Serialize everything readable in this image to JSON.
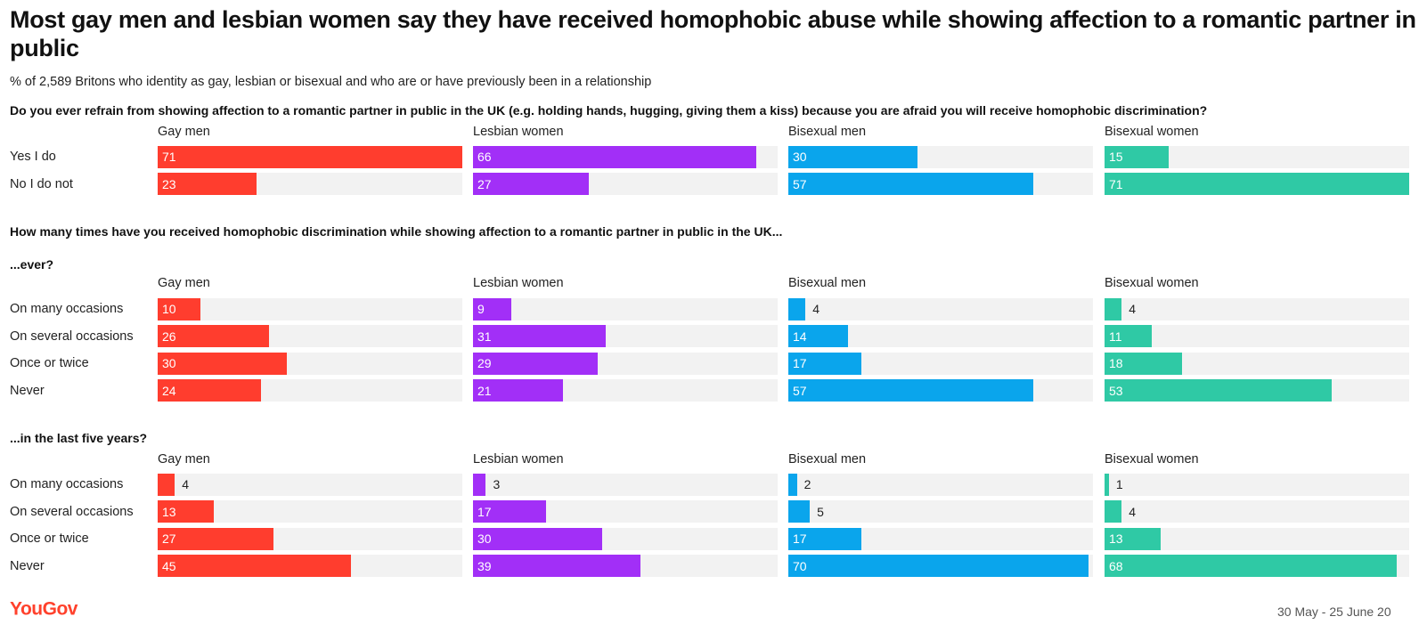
{
  "title": "Most gay men and lesbian women say they have received homophobic abuse while showing affection to a romantic partner in public",
  "subtitle": "% of 2,589 Britons who identity as gay, lesbian or bisexual and who are or have previously been in a relationship",
  "logo": "YouGov",
  "date": "30 May - 25 June 20",
  "chart_data": [
    {
      "type": "bar",
      "title": "Do you ever refrain from showing affection to a romantic partner in public in the UK (e.g. holding hands, hugging, giving them a kiss) because you are afraid you will receive homophobic discrimination?",
      "categories": [
        "Yes I do",
        "No I do not"
      ],
      "xlim": [
        0,
        71
      ],
      "series": [
        {
          "name": "Gay men",
          "color": "#ff3d2e",
          "values": [
            71,
            23
          ]
        },
        {
          "name": "Lesbian women",
          "color": "#a22ff7",
          "values": [
            66,
            27
          ]
        },
        {
          "name": "Bisexual men",
          "color": "#0aa5ec",
          "values": [
            30,
            57
          ]
        },
        {
          "name": "Bisexual women",
          "color": "#2fc9a5",
          "values": [
            15,
            71
          ]
        }
      ]
    },
    {
      "type": "bar",
      "title": "How many times have you received homophobic discrimination while showing affection to a romantic partner in public in the UK...",
      "subtitle": "...ever?",
      "categories": [
        "On many occasions",
        "On several occasions",
        "Once or twice",
        "Never"
      ],
      "xlim": [
        0,
        71
      ],
      "series": [
        {
          "name": "Gay men",
          "color": "#ff3d2e",
          "values": [
            10,
            26,
            30,
            24
          ]
        },
        {
          "name": "Lesbian women",
          "color": "#a22ff7",
          "values": [
            9,
            31,
            29,
            21
          ]
        },
        {
          "name": "Bisexual men",
          "color": "#0aa5ec",
          "values": [
            4,
            14,
            17,
            57
          ]
        },
        {
          "name": "Bisexual women",
          "color": "#2fc9a5",
          "values": [
            4,
            11,
            18,
            53
          ]
        }
      ]
    },
    {
      "type": "bar",
      "subtitle": "...in the last five years?",
      "categories": [
        "On many occasions",
        "On several occasions",
        "Once or twice",
        "Never"
      ],
      "xlim": [
        0,
        71
      ],
      "series": [
        {
          "name": "Gay men",
          "color": "#ff3d2e",
          "values": [
            4,
            13,
            27,
            45
          ]
        },
        {
          "name": "Lesbian women",
          "color": "#a22ff7",
          "values": [
            3,
            17,
            30,
            39
          ]
        },
        {
          "name": "Bisexual men",
          "color": "#0aa5ec",
          "values": [
            2,
            5,
            17,
            70
          ]
        },
        {
          "name": "Bisexual women",
          "color": "#2fc9a5",
          "values": [
            1,
            4,
            13,
            68
          ]
        }
      ]
    }
  ]
}
